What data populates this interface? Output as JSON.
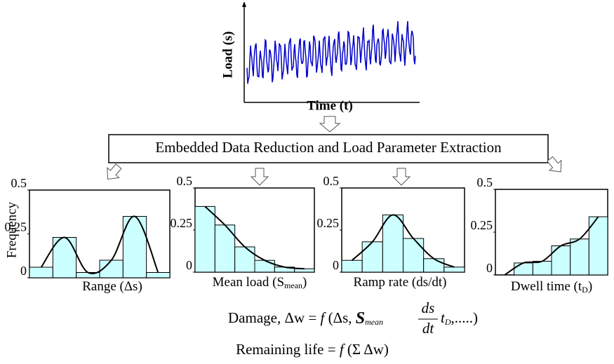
{
  "signal": {
    "ylabel": "Load (s)",
    "xlabel": "Time (t)"
  },
  "process_box": "Embedded Data Reduction and Load Parameter Extraction",
  "chart_data": [
    {
      "type": "bar",
      "ylabel": "Frequency",
      "xlabel": {
        "text": "Range (Δs)"
      },
      "categories": [
        null,
        null,
        null,
        null,
        null,
        null
      ],
      "values": [
        0.06,
        0.23,
        0.03,
        0.1,
        0.35,
        0.03
      ],
      "color": "#ccffff",
      "ylim": [
        0,
        0.5
      ],
      "yticks": [
        0,
        0.25,
        0.5
      ],
      "grid": false
    },
    {
      "type": "bar",
      "xlabel": {
        "text": "Mean load (S",
        "sub": "mean",
        "end": ")"
      },
      "categories": [
        null,
        null,
        null,
        null,
        null,
        null
      ],
      "values": [
        0.39,
        0.28,
        0.15,
        0.07,
        0.03,
        0.02
      ],
      "color": "#ccffff",
      "ylim": [
        0,
        0.5
      ],
      "yticks": [
        0,
        0.25,
        0.5
      ],
      "grid": false
    },
    {
      "type": "bar",
      "xlabel": {
        "text": "Ramp rate (ds/dt)"
      },
      "categories": [
        null,
        null,
        null,
        null,
        null,
        null
      ],
      "values": [
        0.07,
        0.18,
        0.34,
        0.2,
        0.08,
        0.03
      ],
      "color": "#ccffff",
      "ylim": [
        0,
        0.5
      ],
      "yticks": [
        0,
        0.25,
        0.5
      ],
      "grid": false
    },
    {
      "type": "bar",
      "xlabel": {
        "text": "Dwell time (t",
        "sub": "D",
        "end": ")"
      },
      "categories": [
        null,
        null,
        null,
        null,
        null,
        null
      ],
      "values": [
        0,
        0.07,
        0.08,
        0.17,
        0.21,
        0.34
      ],
      "color": "#ccffff",
      "ylim": [
        0,
        0.5
      ],
      "yticks": [
        0,
        0.25,
        0.5
      ],
      "grid": false
    }
  ],
  "damage_equation": {
    "prefix": "Damage,  Δw = ",
    "func": "f",
    "open": " (Δs, ",
    "s": "S",
    "s_sub": "mean",
    "num": "ds",
    "den": "dt",
    "t": "t",
    "t_sub": "D",
    "rest": ",.....)"
  },
  "remaining_life": {
    "text": "Remaining life = ",
    "func": "f",
    "arg": " (Σ Δw)"
  }
}
